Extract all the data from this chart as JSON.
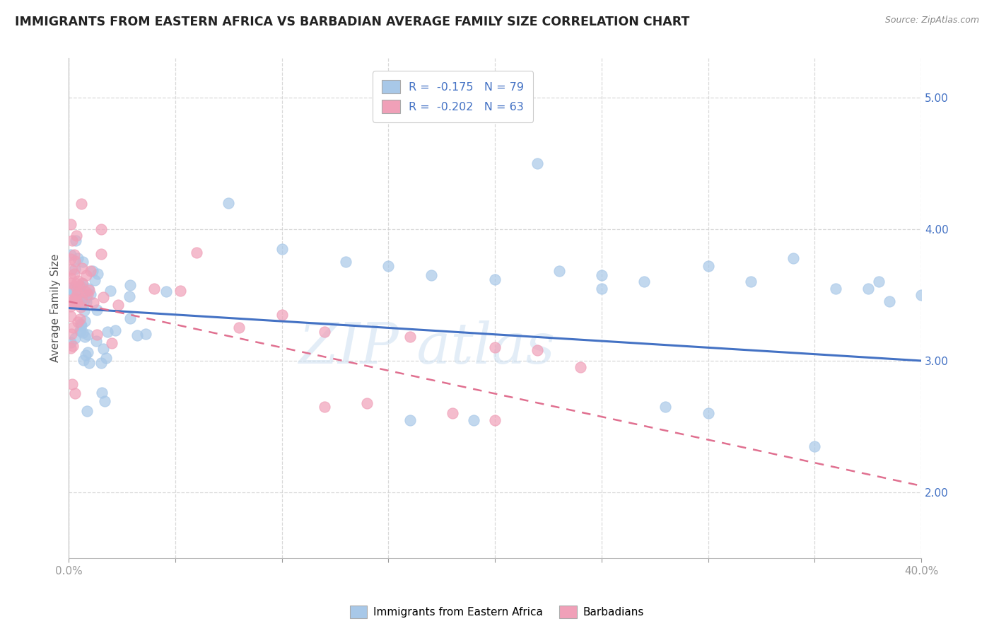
{
  "title": "IMMIGRANTS FROM EASTERN AFRICA VS BARBADIAN AVERAGE FAMILY SIZE CORRELATION CHART",
  "source": "Source: ZipAtlas.com",
  "ylabel": "Average Family Size",
  "xlim": [
    0.0,
    0.4
  ],
  "ylim": [
    1.5,
    5.3
  ],
  "yticks": [
    2.0,
    3.0,
    4.0,
    5.0
  ],
  "xticks": [
    0.0,
    0.05,
    0.1,
    0.15,
    0.2,
    0.25,
    0.3,
    0.35,
    0.4
  ],
  "legend_r1": "R =  -0.175",
  "legend_n1": "N = 79",
  "legend_r2": "R =  -0.202",
  "legend_n2": "N = 63",
  "color_blue": "#a8c8e8",
  "color_pink": "#f0a0b8",
  "line_blue": "#4472c4",
  "line_pink": "#e07090",
  "background": "#ffffff",
  "grid_color": "#d0d0d0"
}
